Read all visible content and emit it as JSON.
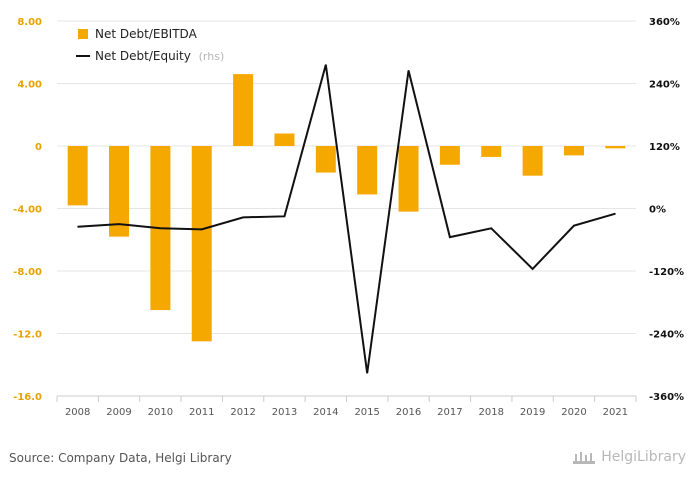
{
  "chart_data": {
    "type": "bar+line",
    "categories": [
      "2008",
      "2009",
      "2010",
      "2011",
      "2012",
      "2013",
      "2014",
      "2015",
      "2016",
      "2017",
      "2018",
      "2019",
      "2020",
      "2021"
    ],
    "series": [
      {
        "name": "Net Debt/EBITDA",
        "axis": "left",
        "type": "bar",
        "color": "#f5a800",
        "values": [
          -3.8,
          -5.8,
          -10.5,
          -12.5,
          4.6,
          0.8,
          -1.7,
          -3.1,
          -4.2,
          -1.2,
          -0.7,
          -1.9,
          -0.6,
          -0.15
        ]
      },
      {
        "name": "Net Debt/Equity",
        "name_suffix": "(rhs)",
        "axis": "right",
        "type": "line",
        "color": "#111111",
        "values": [
          -35,
          -30,
          -38,
          -40,
          -17,
          -15,
          276,
          -316,
          265,
          -55,
          -38,
          -116,
          -33,
          -10
        ]
      }
    ],
    "yaxis_left": {
      "min": -16,
      "max": 8,
      "ticks": [
        8,
        4,
        0,
        -4,
        -8,
        -12,
        -16
      ],
      "tick_labels": [
        "8.00",
        "4.00",
        "0",
        "-4.00",
        "-8.00",
        "-12.0",
        "-16.0"
      ],
      "label_color": "#e8a200"
    },
    "yaxis_right": {
      "min": -360,
      "max": 360,
      "ticks": [
        360,
        240,
        120,
        0,
        -120,
        -240,
        -360
      ],
      "tick_labels": [
        "360%",
        "240%",
        "120%",
        "0%",
        "-120%",
        "-240%",
        "-360%"
      ],
      "label_color": "#111111"
    },
    "grid": true,
    "legend_position": "top-left"
  },
  "footer": {
    "source": "Source: Company Data, Helgi Library",
    "logo_text": "HelgiLibrary"
  }
}
